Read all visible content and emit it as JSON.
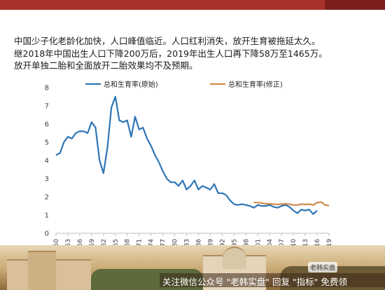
{
  "intro_lines": [
    "中国少子化老龄化加快，人口峰值临近。人口红利消失，放开生育被拖延太久。",
    "继2018年中国出生人口下降200万后，2019年出生人口再下降58万至1465万。",
    "放开单独二胎和全面放开二胎效果均不及预期。"
  ],
  "watermark": "关注微信公众号 \"老韩实盘\" 回复 \"指标\" 免费领",
  "badge": "老韩实盘",
  "chart_data": {
    "type": "line",
    "ylim": [
      0,
      8
    ],
    "yticks": [
      0,
      1,
      2,
      3,
      4,
      5,
      6,
      7,
      8
    ],
    "xlim": [
      1950,
      2019
    ],
    "xticks": [
      1950,
      1953,
      1956,
      1959,
      1962,
      1965,
      1968,
      1971,
      1974,
      1977,
      1980,
      1983,
      1986,
      1989,
      1992,
      1995,
      1998,
      2001,
      2004,
      2007,
      2010,
      2013,
      2016,
      2019
    ],
    "grid": false,
    "legend_position": "top",
    "series": [
      {
        "name": "总和生育率(原始)",
        "color": "#2e75b6",
        "points": [
          [
            1950,
            4.3
          ],
          [
            1951,
            4.4
          ],
          [
            1952,
            5.0
          ],
          [
            1953,
            5.3
          ],
          [
            1954,
            5.2
          ],
          [
            1955,
            5.5
          ],
          [
            1956,
            5.6
          ],
          [
            1957,
            5.6
          ],
          [
            1958,
            5.5
          ],
          [
            1959,
            6.1
          ],
          [
            1960,
            5.8
          ],
          [
            1961,
            4.0
          ],
          [
            1962,
            3.3
          ],
          [
            1963,
            4.7
          ],
          [
            1964,
            6.9
          ],
          [
            1965,
            7.5
          ],
          [
            1966,
            6.2
          ],
          [
            1967,
            6.1
          ],
          [
            1968,
            6.2
          ],
          [
            1969,
            5.3
          ],
          [
            1970,
            6.4
          ],
          [
            1971,
            5.7
          ],
          [
            1972,
            5.8
          ],
          [
            1973,
            5.2
          ],
          [
            1974,
            4.8
          ],
          [
            1975,
            4.3
          ],
          [
            1976,
            3.9
          ],
          [
            1977,
            3.4
          ],
          [
            1978,
            3.0
          ],
          [
            1979,
            2.8
          ],
          [
            1980,
            2.8
          ],
          [
            1981,
            2.6
          ],
          [
            1982,
            2.9
          ],
          [
            1983,
            2.4
          ],
          [
            1984,
            2.6
          ],
          [
            1985,
            2.9
          ],
          [
            1986,
            2.4
          ],
          [
            1987,
            2.6
          ],
          [
            1988,
            2.5
          ],
          [
            1989,
            2.4
          ],
          [
            1990,
            2.7
          ],
          [
            1991,
            2.2
          ],
          [
            1992,
            2.2
          ],
          [
            1993,
            2.1
          ],
          [
            1994,
            1.8
          ],
          [
            1995,
            1.6
          ],
          [
            1996,
            1.55
          ],
          [
            1997,
            1.6
          ],
          [
            1998,
            1.55
          ],
          [
            1999,
            1.5
          ],
          [
            2000,
            1.4
          ],
          [
            2001,
            1.55
          ],
          [
            2002,
            1.5
          ],
          [
            2003,
            1.5
          ],
          [
            2004,
            1.55
          ],
          [
            2005,
            1.45
          ],
          [
            2006,
            1.4
          ],
          [
            2007,
            1.5
          ],
          [
            2008,
            1.55
          ],
          [
            2009,
            1.45
          ],
          [
            2010,
            1.25
          ],
          [
            2011,
            1.1
          ],
          [
            2012,
            1.3
          ],
          [
            2013,
            1.25
          ],
          [
            2014,
            1.3
          ],
          [
            2015,
            1.05
          ],
          [
            2016,
            1.25
          ]
        ]
      },
      {
        "name": "总和生育率(修正)",
        "color": "#d08a4a",
        "points": [
          [
            2000,
            1.7
          ],
          [
            2001,
            1.68
          ],
          [
            2002,
            1.66
          ],
          [
            2003,
            1.62
          ],
          [
            2004,
            1.62
          ],
          [
            2005,
            1.6
          ],
          [
            2006,
            1.58
          ],
          [
            2007,
            1.6
          ],
          [
            2008,
            1.62
          ],
          [
            2009,
            1.6
          ],
          [
            2010,
            1.55
          ],
          [
            2011,
            1.55
          ],
          [
            2012,
            1.6
          ],
          [
            2013,
            1.58
          ],
          [
            2014,
            1.6
          ],
          [
            2015,
            1.55
          ],
          [
            2016,
            1.68
          ],
          [
            2017,
            1.72
          ],
          [
            2018,
            1.55
          ],
          [
            2019,
            1.52
          ]
        ]
      }
    ]
  }
}
